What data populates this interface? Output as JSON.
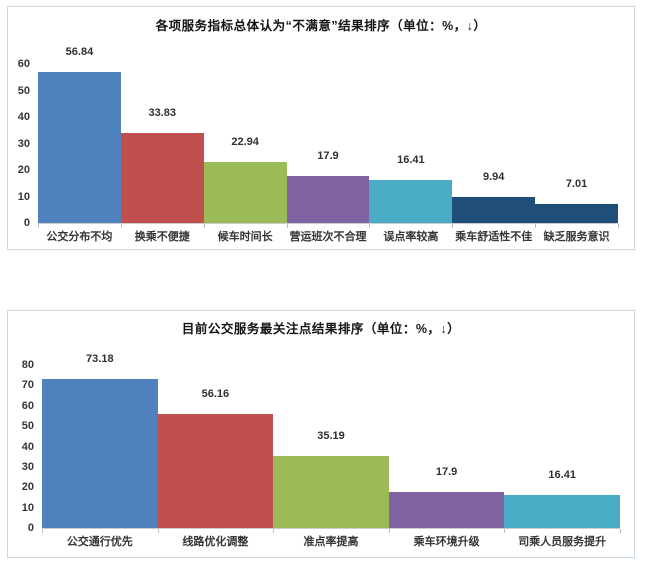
{
  "page": {
    "background": "#ffffff",
    "card_border_color": "#c9d7e3"
  },
  "chart_data": [
    {
      "type": "bar",
      "title": "各项服务指标总体认为“不满意”结果排序（单位：%，↓）",
      "categories": [
        "公交分布不均",
        "换乘不便捷",
        "候车时间长",
        "营运班次不合理",
        "误点率较高",
        "乘车舒适性不佳",
        "缺乏服务意识"
      ],
      "values": [
        56.84,
        33.83,
        22.94,
        17.9,
        16.41,
        9.94,
        7.01
      ],
      "value_labels": [
        "56.84",
        "33.83",
        "22.94",
        "17.9",
        "16.41",
        "9.94",
        "7.01"
      ],
      "bar_colors": [
        "#4F81BD",
        "#C0504D",
        "#9BBB59",
        "#8064A2",
        "#4BACC6",
        "#1F4E79",
        "#1F4E79"
      ],
      "xlabel": "",
      "ylabel": "",
      "ylim": [
        0,
        60
      ],
      "yticks": [
        0,
        10,
        20,
        30,
        40,
        50,
        60
      ],
      "grid": false,
      "legend": "none"
    },
    {
      "type": "bar",
      "title": "目前公交服务最关注点结果排序（单位：%，↓）",
      "categories": [
        "公交通行优先",
        "线路优化调整",
        "准点率提高",
        "乘车环境升级",
        "司乘人员服务提升"
      ],
      "values": [
        73.18,
        56.16,
        35.19,
        17.9,
        16.41
      ],
      "value_labels": [
        "73.18",
        "56.16",
        "35.19",
        "17.9",
        "16.41"
      ],
      "bar_colors": [
        "#4F81BD",
        "#C0504D",
        "#9BBB59",
        "#8064A2",
        "#4BACC6"
      ],
      "xlabel": "",
      "ylabel": "",
      "ylim": [
        0,
        80
      ],
      "yticks": [
        0,
        10,
        20,
        30,
        40,
        50,
        60,
        70,
        80
      ],
      "grid": false,
      "legend": "none"
    }
  ]
}
